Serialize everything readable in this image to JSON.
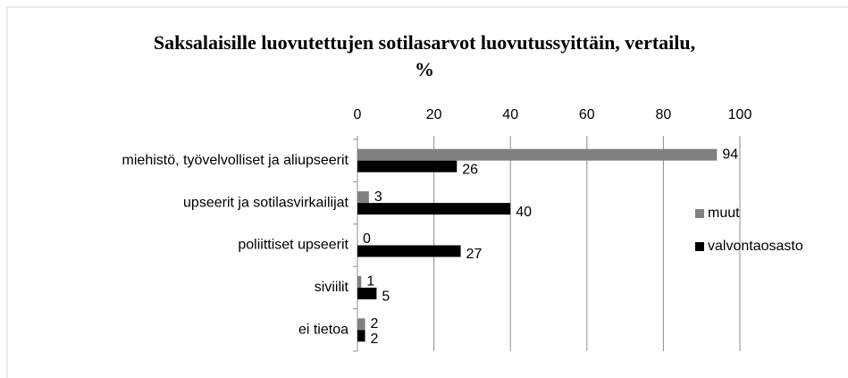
{
  "chart_data": {
    "type": "barh",
    "title": [
      "Saksalaisille luovutettujen sotilasarvot luovutussyittäin, vertailu,",
      "%"
    ],
    "categories": [
      "miehistö, työvelvolliset ja aliupseerit",
      "upseerit ja sotilasvirkailijat",
      "poliittiset upseerit",
      "siviilit",
      "ei tietoa"
    ],
    "series": [
      {
        "name": "muut",
        "color": "#808080",
        "values": [
          94,
          3,
          0,
          1,
          2
        ]
      },
      {
        "name": "valvontaosasto",
        "color": "#000000",
        "values": [
          26,
          40,
          27,
          5,
          2
        ]
      }
    ],
    "xlim": [
      0,
      100
    ],
    "xticks": [
      0,
      20,
      40,
      60,
      80,
      100
    ],
    "grid": true,
    "legend": "right"
  }
}
